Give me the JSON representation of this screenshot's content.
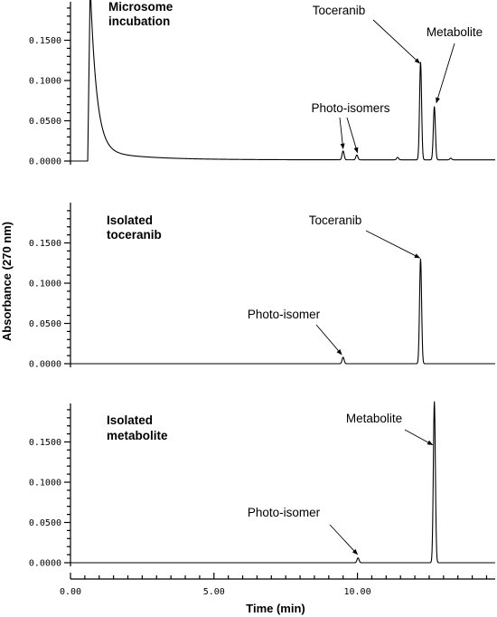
{
  "chart_data": {
    "type": "line",
    "xlabel": "Time (min)",
    "ylabel": "Absorbance (270 nm)",
    "xlim": [
      0,
      14.8
    ],
    "ylim": [
      -0.01,
      0.2
    ],
    "x_ticks": [
      "0.00",
      "5.00",
      "10.00"
    ],
    "x_tick_values": [
      0,
      5,
      10
    ],
    "y_ticks": [
      "0.0000",
      "0.0500",
      "0.1000",
      "0.1500"
    ],
    "y_tick_values": [
      0,
      0.05,
      0.1,
      0.15
    ],
    "panels": [
      {
        "label_lines": [
          "Microsome",
          "incubation"
        ],
        "peaks": [
          {
            "x": 0.7,
            "y": 0.2,
            "kind": "solvent-front"
          },
          {
            "x": 9.5,
            "y": 0.011
          },
          {
            "x": 9.98,
            "y": 0.006
          },
          {
            "x": 11.4,
            "y": 0.003
          },
          {
            "x": 12.2,
            "y": 0.121
          },
          {
            "x": 12.68,
            "y": 0.066
          },
          {
            "x": 13.25,
            "y": 0.002
          }
        ],
        "annotations": [
          {
            "text": "Toceranib",
            "target_x": 12.17,
            "target_y": 0.118
          },
          {
            "text": "Metabolite",
            "target_x": 12.75,
            "target_y": 0.069
          },
          {
            "text": "Photo-isomers",
            "target_x": 9.5,
            "target_y": 0.012
          },
          {
            "text": "",
            "target_x": 10.0,
            "target_y": 0.007
          }
        ]
      },
      {
        "label_lines": [
          "Isolated",
          "toceranib"
        ],
        "peaks": [
          {
            "x": 9.5,
            "y": 0.008
          },
          {
            "x": 12.2,
            "y": 0.13
          }
        ],
        "annotations": [
          {
            "text": "Toceranib",
            "target_x": 12.17,
            "target_y": 0.128
          },
          {
            "text": "Photo-isomer",
            "target_x": 9.45,
            "target_y": 0.008
          }
        ]
      },
      {
        "label_lines": [
          "Isolated",
          "metabolite"
        ],
        "peaks": [
          {
            "x": 10.02,
            "y": 0.006
          },
          {
            "x": 12.68,
            "y": 0.2
          }
        ],
        "annotations": [
          {
            "text": "Metabolite",
            "target_x": 12.62,
            "target_y": 0.143
          },
          {
            "text": "Photo-isomer",
            "target_x": 10.0,
            "target_y": 0.007
          }
        ]
      }
    ]
  }
}
